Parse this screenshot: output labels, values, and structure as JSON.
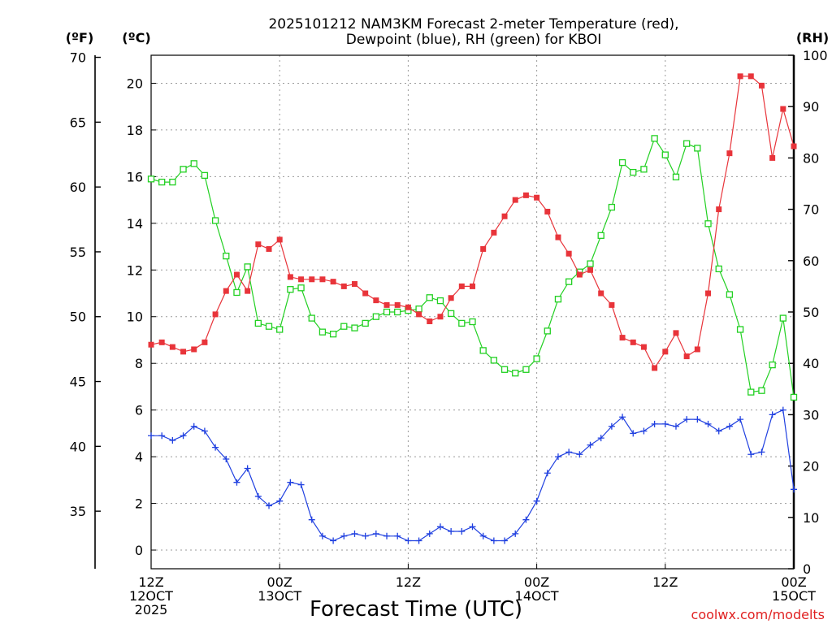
{
  "chart_data": {
    "type": "line",
    "title_line1": "2025101212 NAM3KM Forecast 2-meter Temperature (red),",
    "title_line2": "Dewpoint (blue), RH (green) for KBOI",
    "xlabel": "Forecast Time (UTC)",
    "credit": "coolwx.com/modelts",
    "unit_f": "(ºF)",
    "unit_c": "(ºC)",
    "unit_rh": "(RH)",
    "x_range": [
      0,
      60
    ],
    "x_ticks": [
      {
        "x": 0,
        "lines": [
          "12Z",
          "12OCT",
          "2025"
        ]
      },
      {
        "x": 12,
        "lines": [
          "00Z",
          "13OCT"
        ]
      },
      {
        "x": 24,
        "lines": [
          "12Z"
        ]
      },
      {
        "x": 36,
        "lines": [
          "00Z",
          "14OCT"
        ]
      },
      {
        "x": 48,
        "lines": [
          "12Z"
        ]
      },
      {
        "x": 60,
        "lines": [
          "00Z",
          "15OCT"
        ]
      }
    ],
    "c_axis": {
      "range": [
        -0.8,
        21.2
      ],
      "ticks": [
        0,
        2,
        4,
        6,
        8,
        10,
        12,
        14,
        16,
        18,
        20
      ]
    },
    "f_axis": {
      "range": [
        30.56,
        70.16
      ],
      "ticks": [
        35,
        40,
        45,
        50,
        55,
        60,
        65,
        70
      ]
    },
    "rh_axis": {
      "range": [
        0,
        100
      ],
      "ticks": [
        0,
        10,
        20,
        30,
        40,
        50,
        60,
        70,
        80,
        90,
        100
      ]
    },
    "x": [
      0,
      1,
      2,
      3,
      4,
      5,
      6,
      7,
      8,
      9,
      10,
      11,
      12,
      13,
      14,
      15,
      16,
      17,
      18,
      19,
      20,
      21,
      22,
      23,
      24,
      25,
      26,
      27,
      28,
      29,
      30,
      31,
      32,
      33,
      34,
      35,
      36,
      37,
      38,
      39,
      40,
      41,
      42,
      43,
      44,
      45,
      46,
      47,
      48,
      49,
      50,
      51,
      52,
      53,
      54,
      55,
      56,
      57,
      58,
      59,
      60
    ],
    "series": [
      {
        "name": "Temperature",
        "color": "#e8343a",
        "axis": "c",
        "marker": "filled-square",
        "values": [
          8.8,
          8.9,
          8.7,
          8.5,
          8.6,
          8.9,
          10.1,
          11.1,
          11.8,
          11.1,
          13.1,
          12.9,
          13.3,
          11.7,
          11.6,
          11.6,
          11.6,
          11.5,
          11.3,
          11.4,
          11.0,
          10.7,
          10.5,
          10.5,
          10.4,
          10.1,
          9.8,
          10.0,
          10.8,
          11.3,
          11.3,
          12.9,
          13.6,
          14.3,
          15.0,
          15.2,
          15.1,
          14.5,
          13.4,
          12.7,
          11.8,
          12.0,
          11.0,
          10.5,
          9.1,
          8.9,
          8.7,
          7.8,
          8.5,
          9.3,
          8.3,
          8.6,
          11.0,
          14.6,
          17.0,
          20.3,
          20.3,
          19.9,
          16.8,
          18.9,
          17.3
        ]
      },
      {
        "name": "Dewpoint",
        "color": "#2040e0",
        "axis": "c",
        "marker": "plus",
        "values": [
          4.9,
          4.9,
          4.7,
          4.9,
          5.3,
          5.1,
          4.4,
          3.9,
          2.9,
          3.5,
          2.3,
          1.9,
          2.1,
          2.9,
          2.8,
          1.3,
          0.6,
          0.4,
          0.6,
          0.7,
          0.6,
          0.7,
          0.6,
          0.6,
          0.4,
          0.4,
          0.7,
          1.0,
          0.8,
          0.8,
          1.0,
          0.6,
          0.4,
          0.4,
          0.7,
          1.3,
          2.1,
          3.3,
          4.0,
          4.2,
          4.1,
          4.5,
          4.8,
          5.3,
          5.7,
          5.0,
          5.1,
          5.4,
          5.4,
          5.3,
          5.6,
          5.6,
          5.4,
          5.1,
          5.3,
          5.6,
          4.1,
          4.2,
          5.8,
          6.0,
          2.6
        ]
      },
      {
        "name": "RH",
        "color": "#22d022",
        "axis": "rh",
        "marker": "open-square",
        "values": [
          75.9,
          75.3,
          75.3,
          77.8,
          78.9,
          76.6,
          67.8,
          60.9,
          53.8,
          58.8,
          47.8,
          47.2,
          46.6,
          54.4,
          54.7,
          48.8,
          46.1,
          45.7,
          47.2,
          46.9,
          47.8,
          49.1,
          50.0,
          50.0,
          50.3,
          50.6,
          52.8,
          52.2,
          49.7,
          47.8,
          48.1,
          42.5,
          40.6,
          38.8,
          38.1,
          38.8,
          40.9,
          46.3,
          52.5,
          55.9,
          57.8,
          59.4,
          64.9,
          70.4,
          79.1,
          77.2,
          77.8,
          83.8,
          80.6,
          76.3,
          82.8,
          81.9,
          67.2,
          58.4,
          53.4,
          46.6,
          34.4,
          34.7,
          39.7,
          48.8,
          33.4
        ]
      }
    ]
  }
}
